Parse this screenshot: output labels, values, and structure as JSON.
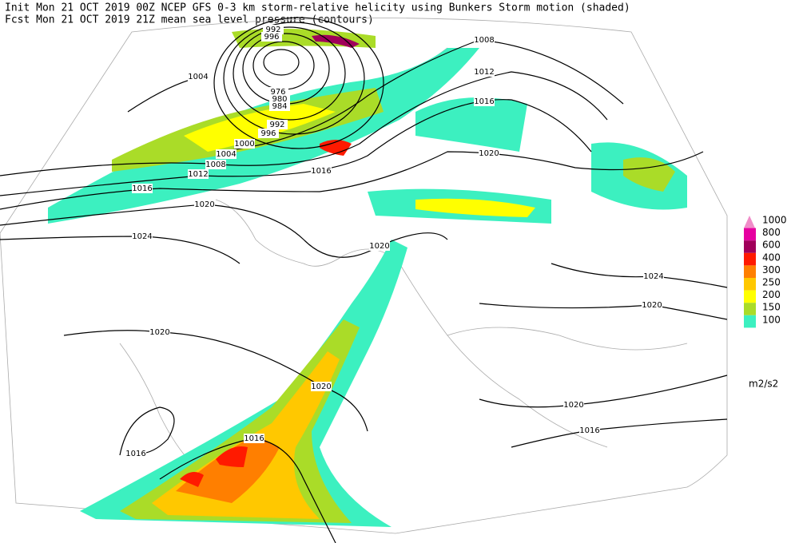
{
  "header": {
    "lines": [
      "Init  Mon 21 OCT 2019 00Z  NCEP GFS 0-3 km storm-relative helicity using Bunkers Storm motion (shaded)",
      "Fcst Mon 21 OCT 2019 21Z  mean sea level pressure (contours)"
    ]
  },
  "legend": {
    "labels": [
      "1000",
      "800",
      "600",
      "400",
      "300",
      "250",
      "200",
      "150",
      "100"
    ],
    "colors": [
      "#f08cc8",
      "#e600a0",
      "#a0005a",
      "#ff1a00",
      "#ff7f00",
      "#ffc800",
      "#ffff00",
      "#aadc28",
      "#3cf0c0"
    ],
    "unit": "m2/s2"
  },
  "contour_labels": [
    "992",
    "996",
    "1008",
    "1004",
    "1012",
    "1016",
    "976",
    "980",
    "984",
    "992",
    "996",
    "1000",
    "1004",
    "1008",
    "1012",
    "1016",
    "1016",
    "1020",
    "1020",
    "1024",
    "1020",
    "1024",
    "1020",
    "1020",
    "1020",
    "1020",
    "1016",
    "1016",
    "1016"
  ]
}
